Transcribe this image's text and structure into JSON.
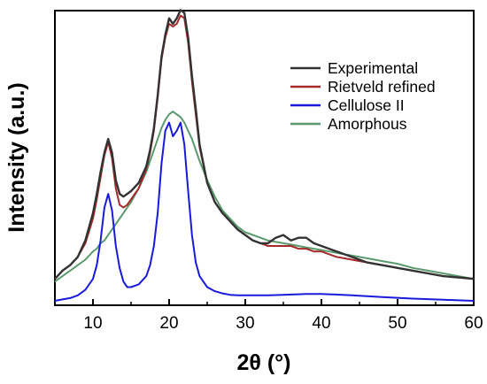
{
  "chart_data": {
    "type": "line",
    "xlabel": "2θ (°)",
    "ylabel": "Intensity (a.u.)",
    "xlim": [
      5,
      60
    ],
    "xticks": [
      10,
      20,
      30,
      40,
      50,
      60
    ],
    "yticks": false,
    "grid": false,
    "legend_position": "top-right",
    "series": [
      {
        "name": "Experimental",
        "color": "#333333",
        "x": [
          5,
          6,
          7,
          8,
          9,
          10,
          10.5,
          11,
          11.5,
          12,
          12.5,
          13,
          13.5,
          14,
          14.5,
          15,
          16,
          17,
          17.5,
          18,
          18.5,
          19,
          19.5,
          20,
          20.5,
          21,
          21.5,
          22,
          22.5,
          23,
          23.5,
          24,
          25,
          26,
          27,
          28,
          29,
          30,
          31,
          32,
          33,
          34,
          35,
          36,
          37,
          38,
          39,
          40,
          41,
          42,
          44,
          46,
          48,
          50,
          52,
          54,
          56,
          58,
          60
        ],
        "values": [
          0.08,
          0.11,
          0.13,
          0.16,
          0.22,
          0.32,
          0.39,
          0.47,
          0.54,
          0.59,
          0.54,
          0.44,
          0.39,
          0.38,
          0.39,
          0.4,
          0.43,
          0.49,
          0.55,
          0.63,
          0.75,
          0.89,
          0.97,
          1.03,
          1.01,
          1.03,
          1.06,
          1.05,
          0.96,
          0.82,
          0.7,
          0.57,
          0.43,
          0.36,
          0.32,
          0.29,
          0.26,
          0.24,
          0.22,
          0.21,
          0.21,
          0.23,
          0.24,
          0.22,
          0.23,
          0.23,
          0.21,
          0.2,
          0.19,
          0.18,
          0.16,
          0.14,
          0.13,
          0.12,
          0.11,
          0.1,
          0.09,
          0.085,
          0.08
        ]
      },
      {
        "name": "Rietveld refined",
        "color": "#a52a2a",
        "x": [
          5,
          6,
          7,
          8,
          9,
          10,
          10.5,
          11,
          11.5,
          12,
          12.5,
          13,
          13.5,
          14,
          14.5,
          15,
          16,
          17,
          17.5,
          18,
          18.5,
          19,
          19.5,
          20,
          20.5,
          21,
          21.5,
          22,
          22.5,
          23,
          23.5,
          24,
          25,
          26,
          27,
          28,
          29,
          30,
          31,
          32,
          33,
          34,
          35,
          36,
          37,
          38,
          39,
          40,
          41,
          42,
          44,
          46,
          48,
          50,
          52,
          54,
          56,
          58,
          60
        ],
        "values": [
          0.08,
          0.11,
          0.13,
          0.16,
          0.21,
          0.3,
          0.37,
          0.45,
          0.53,
          0.58,
          0.52,
          0.41,
          0.35,
          0.34,
          0.35,
          0.37,
          0.41,
          0.48,
          0.54,
          0.62,
          0.74,
          0.88,
          0.96,
          1.01,
          1.0,
          1.01,
          1.04,
          1.03,
          0.94,
          0.8,
          0.68,
          0.56,
          0.43,
          0.36,
          0.32,
          0.29,
          0.26,
          0.24,
          0.22,
          0.21,
          0.2,
          0.2,
          0.2,
          0.2,
          0.19,
          0.19,
          0.18,
          0.18,
          0.17,
          0.16,
          0.15,
          0.14,
          0.13,
          0.12,
          0.11,
          0.1,
          0.09,
          0.085,
          0.08
        ]
      },
      {
        "name": "Cellulose II",
        "color": "#1a1adb",
        "x": [
          5,
          6,
          7,
          8,
          9,
          10,
          10.5,
          11,
          11.5,
          12,
          12.5,
          13,
          13.5,
          14,
          14.5,
          15,
          16,
          17,
          17.5,
          18,
          18.5,
          19,
          19.5,
          20,
          20.5,
          21,
          21.5,
          22,
          22.5,
          23,
          23.5,
          24,
          25,
          26,
          27,
          28,
          29,
          30,
          31,
          32,
          33,
          34,
          35,
          36,
          37,
          38,
          39,
          40,
          41,
          42,
          44,
          46,
          48,
          50,
          52,
          54,
          56,
          58,
          60
        ],
        "values": [
          0.0,
          0.005,
          0.01,
          0.02,
          0.04,
          0.08,
          0.13,
          0.22,
          0.34,
          0.39,
          0.33,
          0.2,
          0.12,
          0.07,
          0.05,
          0.05,
          0.06,
          0.09,
          0.13,
          0.2,
          0.32,
          0.5,
          0.62,
          0.65,
          0.6,
          0.62,
          0.65,
          0.57,
          0.4,
          0.24,
          0.14,
          0.09,
          0.05,
          0.035,
          0.027,
          0.022,
          0.02,
          0.02,
          0.02,
          0.02,
          0.02,
          0.021,
          0.022,
          0.023,
          0.024,
          0.025,
          0.025,
          0.025,
          0.024,
          0.023,
          0.02,
          0.017,
          0.014,
          0.011,
          0.008,
          0.006,
          0.004,
          0.002,
          0.0
        ]
      },
      {
        "name": "Amorphous",
        "color": "#5a9a6e",
        "x": [
          5,
          6,
          7,
          8,
          9,
          10,
          10.5,
          11,
          11.5,
          12,
          12.5,
          13,
          13.5,
          14,
          14.5,
          15,
          16,
          17,
          17.5,
          18,
          18.5,
          19,
          19.5,
          20,
          20.5,
          21,
          21.5,
          22,
          22.5,
          23,
          23.5,
          24,
          25,
          26,
          27,
          28,
          29,
          30,
          31,
          32,
          33,
          34,
          35,
          36,
          37,
          38,
          39,
          40,
          41,
          42,
          44,
          46,
          48,
          50,
          52,
          54,
          56,
          58,
          60
        ],
        "values": [
          0.07,
          0.09,
          0.11,
          0.13,
          0.15,
          0.18,
          0.19,
          0.21,
          0.22,
          0.24,
          0.26,
          0.28,
          0.3,
          0.32,
          0.34,
          0.36,
          0.41,
          0.47,
          0.51,
          0.55,
          0.59,
          0.63,
          0.66,
          0.68,
          0.69,
          0.68,
          0.67,
          0.65,
          0.62,
          0.59,
          0.55,
          0.51,
          0.44,
          0.38,
          0.33,
          0.3,
          0.27,
          0.25,
          0.24,
          0.23,
          0.22,
          0.215,
          0.21,
          0.205,
          0.2,
          0.195,
          0.19,
          0.185,
          0.18,
          0.175,
          0.165,
          0.155,
          0.145,
          0.135,
          0.12,
          0.11,
          0.1,
          0.09,
          0.08
        ]
      }
    ]
  }
}
